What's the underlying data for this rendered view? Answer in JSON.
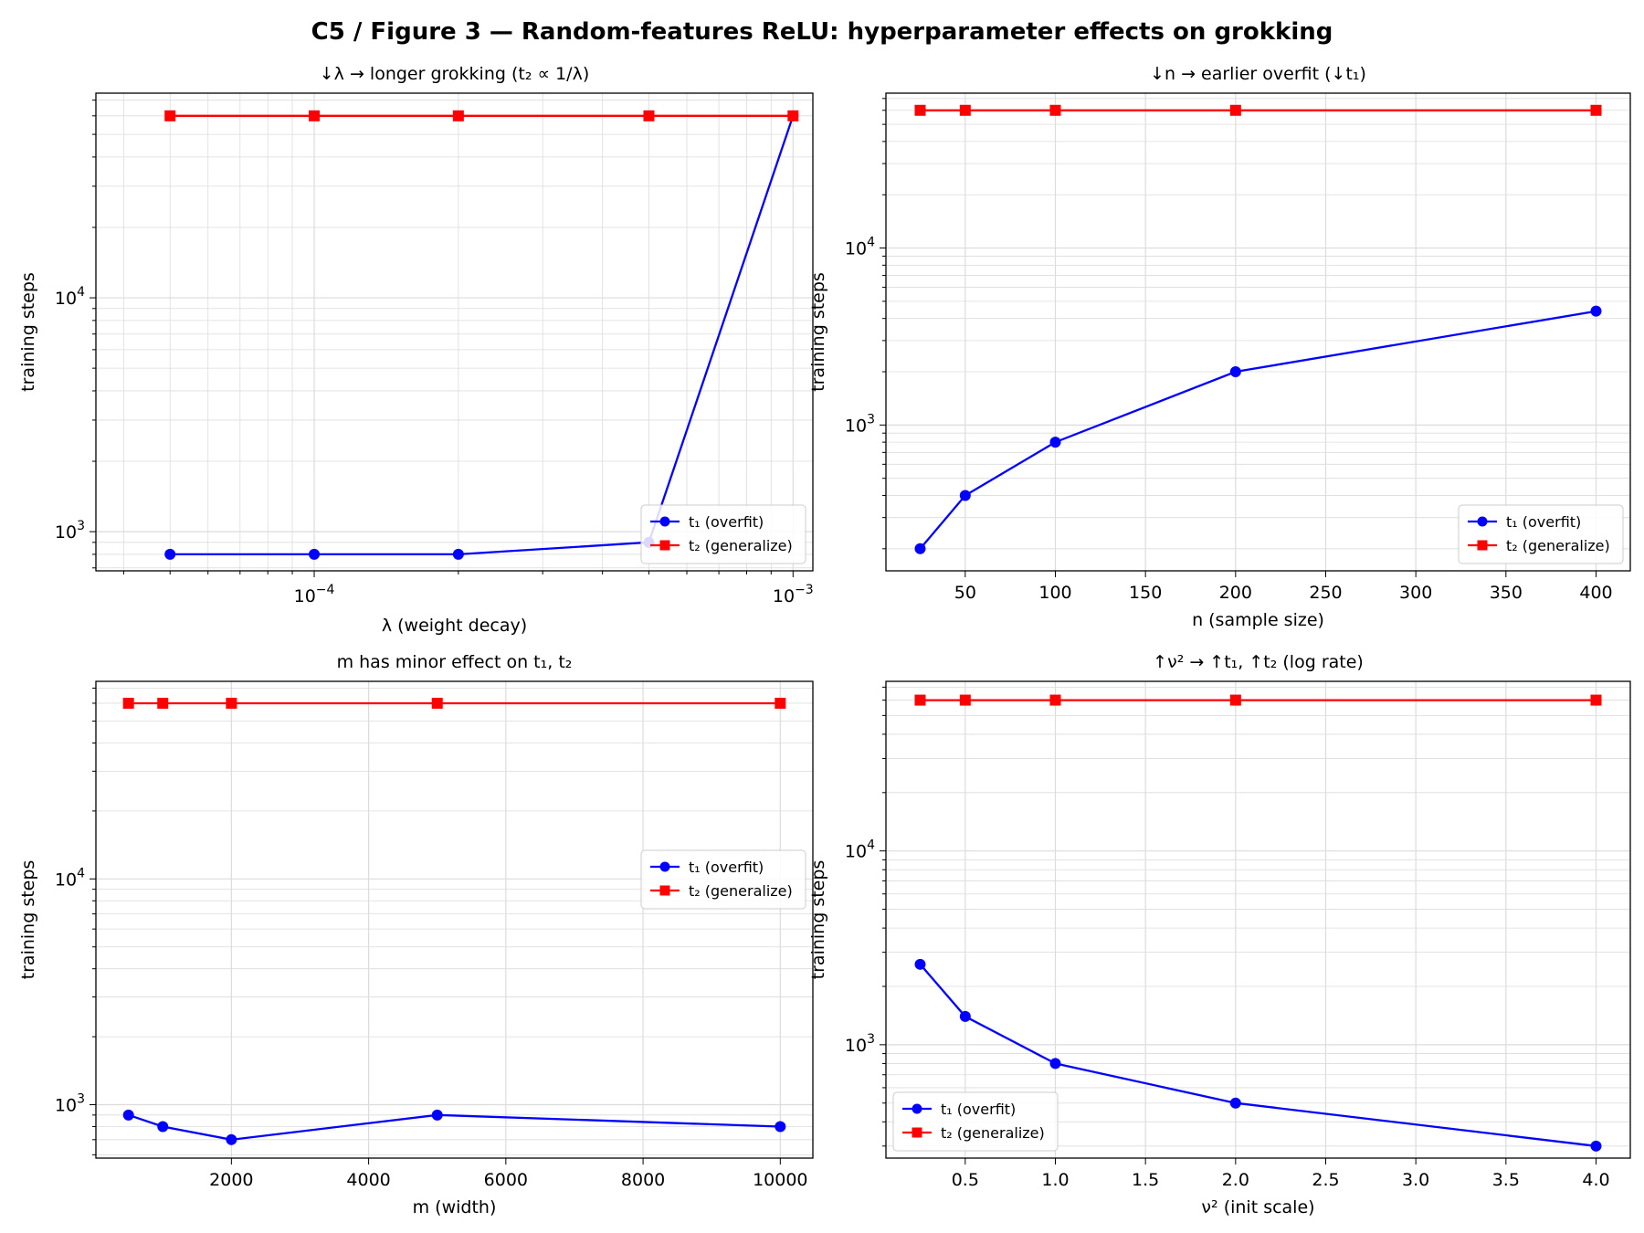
{
  "figure_title": "C5 / Figure 3 — Random-features ReLU: hyperparameter effects on grokking",
  "colors": {
    "t1": "#0000ff",
    "t2": "#ff0000",
    "grid": "#dcdcdc",
    "axis": "#000000"
  },
  "chart_data": [
    {
      "type": "line",
      "title": "↓λ → longer grokking (t₂ ∝ 1/λ)",
      "xlabel": "λ (weight decay)",
      "ylabel": "training steps",
      "xscale": "log",
      "yscale": "log",
      "xlim": [
        3.5e-05,
        0.0011
      ],
      "ylim": [
        680,
        75000
      ],
      "x_ticks": [
        {
          "value": 0.0001,
          "base": "10",
          "exp": "−4"
        },
        {
          "value": 0.001,
          "base": "10",
          "exp": "−3"
        }
      ],
      "y_ticks": [
        {
          "value": 1000,
          "base": "10",
          "exp": "3"
        },
        {
          "value": 10000,
          "base": "10",
          "exp": "4"
        }
      ],
      "grid": true,
      "legend_position": "lower-right",
      "series": [
        {
          "name": "t₁ (overfit)",
          "color": "#0000ff",
          "marker": "circle",
          "x": [
            5e-05,
            0.0001,
            0.0002,
            0.0005,
            0.001
          ],
          "y": [
            800,
            800,
            800,
            900,
            60000
          ]
        },
        {
          "name": "t₂ (generalize)",
          "color": "#ff0000",
          "marker": "square",
          "x": [
            5e-05,
            0.0001,
            0.0002,
            0.0005,
            0.001
          ],
          "y": [
            60000,
            60000,
            60000,
            60000,
            60000
          ]
        }
      ]
    },
    {
      "type": "line",
      "title": "↓n → earlier overfit (↓t₁)",
      "xlabel": "n (sample size)",
      "ylabel": "training steps",
      "xscale": "linear",
      "yscale": "log",
      "xlim": [
        6,
        419
      ],
      "ylim": [
        150,
        75000
      ],
      "x_ticks": [
        {
          "value": 50,
          "label": "50"
        },
        {
          "value": 100,
          "label": "100"
        },
        {
          "value": 150,
          "label": "150"
        },
        {
          "value": 200,
          "label": "200"
        },
        {
          "value": 250,
          "label": "250"
        },
        {
          "value": 300,
          "label": "300"
        },
        {
          "value": 350,
          "label": "350"
        },
        {
          "value": 400,
          "label": "400"
        }
      ],
      "y_ticks": [
        {
          "value": 1000,
          "base": "10",
          "exp": "3"
        },
        {
          "value": 10000,
          "base": "10",
          "exp": "4"
        }
      ],
      "grid": true,
      "legend_position": "lower-right",
      "series": [
        {
          "name": "t₁ (overfit)",
          "color": "#0000ff",
          "marker": "circle",
          "x": [
            25,
            50,
            100,
            200,
            400
          ],
          "y": [
            200,
            400,
            800,
            2000,
            4400
          ]
        },
        {
          "name": "t₂ (generalize)",
          "color": "#ff0000",
          "marker": "square",
          "x": [
            25,
            50,
            100,
            200,
            400
          ],
          "y": [
            60000,
            60000,
            60000,
            60000,
            60000
          ]
        }
      ]
    },
    {
      "type": "line",
      "title": "m has minor effect on t₁, t₂",
      "xlabel": "m (width)",
      "ylabel": "training steps",
      "xscale": "linear",
      "yscale": "log",
      "xlim": [
        25,
        10475
      ],
      "ylim": [
        580,
        75000
      ],
      "x_ticks": [
        {
          "value": 2000,
          "label": "2000"
        },
        {
          "value": 4000,
          "label": "4000"
        },
        {
          "value": 6000,
          "label": "6000"
        },
        {
          "value": 8000,
          "label": "8000"
        },
        {
          "value": 10000,
          "label": "10000"
        }
      ],
      "y_ticks": [
        {
          "value": 1000,
          "base": "10",
          "exp": "3"
        },
        {
          "value": 10000,
          "base": "10",
          "exp": "4"
        }
      ],
      "grid": true,
      "legend_position": "center-right",
      "series": [
        {
          "name": "t₁ (overfit)",
          "color": "#0000ff",
          "marker": "circle",
          "x": [
            500,
            1000,
            2000,
            5000,
            10000
          ],
          "y": [
            900,
            800,
            700,
            900,
            800
          ]
        },
        {
          "name": "t₂ (generalize)",
          "color": "#ff0000",
          "marker": "square",
          "x": [
            500,
            1000,
            2000,
            5000,
            10000
          ],
          "y": [
            60000,
            60000,
            60000,
            60000,
            60000
          ]
        }
      ]
    },
    {
      "type": "line",
      "title": "↑ν² → ↑t₁, ↑t₂ (log rate)",
      "xlabel": "ν² (init scale)",
      "ylabel": "training steps",
      "xscale": "linear",
      "yscale": "log",
      "xlim": [
        0.06,
        4.19
      ],
      "ylim": [
        260,
        75000
      ],
      "x_ticks": [
        {
          "value": 0.5,
          "label": "0.5"
        },
        {
          "value": 1.0,
          "label": "1.0"
        },
        {
          "value": 1.5,
          "label": "1.5"
        },
        {
          "value": 2.0,
          "label": "2.0"
        },
        {
          "value": 2.5,
          "label": "2.5"
        },
        {
          "value": 3.0,
          "label": "3.0"
        },
        {
          "value": 3.5,
          "label": "3.5"
        },
        {
          "value": 4.0,
          "label": "4.0"
        }
      ],
      "y_ticks": [
        {
          "value": 1000,
          "base": "10",
          "exp": "3"
        },
        {
          "value": 10000,
          "base": "10",
          "exp": "4"
        }
      ],
      "grid": true,
      "legend_position": "lower-left",
      "series": [
        {
          "name": "t₁ (overfit)",
          "color": "#0000ff",
          "marker": "circle",
          "x": [
            0.25,
            0.5,
            1.0,
            2.0,
            4.0
          ],
          "y": [
            2600,
            1400,
            800,
            500,
            300
          ]
        },
        {
          "name": "t₂ (generalize)",
          "color": "#ff0000",
          "marker": "square",
          "x": [
            0.25,
            0.5,
            1.0,
            2.0,
            4.0
          ],
          "y": [
            60000,
            60000,
            60000,
            60000,
            60000
          ]
        }
      ]
    }
  ]
}
